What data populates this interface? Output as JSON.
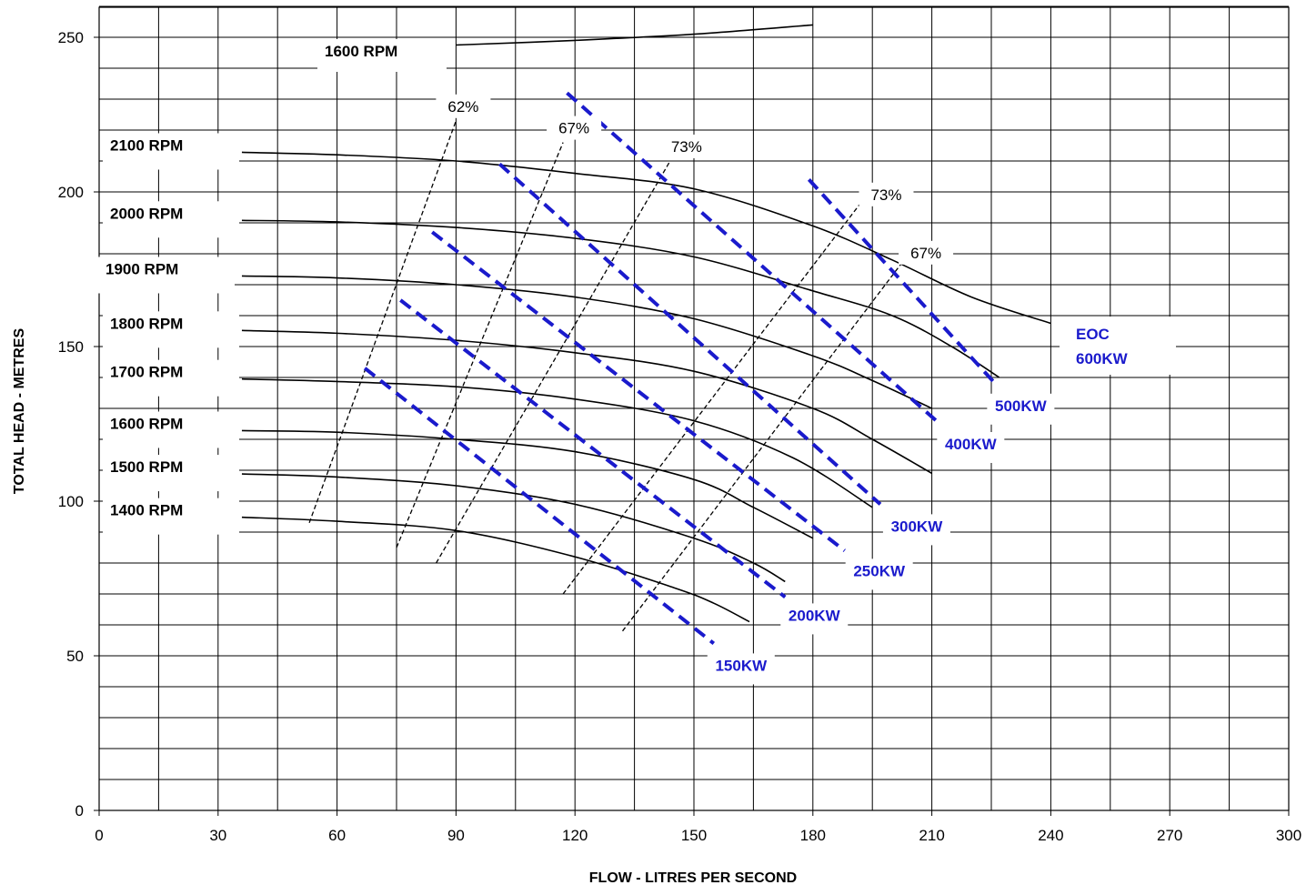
{
  "chart_data": {
    "type": "line",
    "title": "",
    "xlabel": "FLOW  -  LITRES PER SECOND",
    "ylabel": "TOTAL HEAD  -  METRES",
    "xlim": [
      0,
      300
    ],
    "ylim": [
      0,
      260
    ],
    "x_ticks": [
      0,
      30,
      60,
      90,
      120,
      150,
      180,
      210,
      240,
      270,
      300
    ],
    "y_ticks": [
      0,
      50,
      100,
      150,
      200,
      250
    ],
    "grid": true,
    "speed_curves": [
      {
        "name": "1600 RPM",
        "points": [
          [
            90,
            247.5
          ],
          [
            120,
            249
          ],
          [
            150,
            251
          ],
          [
            180,
            254
          ]
        ]
      },
      {
        "name": "2100 RPM",
        "points": [
          [
            36,
            212.8
          ],
          [
            60,
            212
          ],
          [
            90,
            210
          ],
          [
            120,
            206
          ],
          [
            150,
            201
          ],
          [
            180,
            189
          ],
          [
            200,
            178
          ],
          [
            220,
            166
          ],
          [
            240,
            157.5
          ]
        ]
      },
      {
        "name": "2000 RPM",
        "points": [
          [
            36,
            190.8
          ],
          [
            60,
            190.3
          ],
          [
            90,
            188.5
          ],
          [
            120,
            185
          ],
          [
            150,
            179
          ],
          [
            180,
            168
          ],
          [
            200,
            160
          ],
          [
            215,
            150
          ],
          [
            227,
            140
          ]
        ]
      },
      {
        "name": "1900 RPM",
        "points": [
          [
            36,
            172.8
          ],
          [
            60,
            172.2
          ],
          [
            90,
            170
          ],
          [
            120,
            166
          ],
          [
            150,
            159
          ],
          [
            180,
            147
          ],
          [
            195,
            139
          ],
          [
            210,
            130
          ]
        ]
      },
      {
        "name": "1800 RPM",
        "points": [
          [
            36,
            155.2
          ],
          [
            60,
            154.3
          ],
          [
            90,
            152
          ],
          [
            120,
            148
          ],
          [
            150,
            142
          ],
          [
            180,
            130
          ],
          [
            195,
            120
          ],
          [
            210,
            109
          ]
        ]
      },
      {
        "name": "1700 RPM",
        "points": [
          [
            36,
            139.5
          ],
          [
            60,
            138.7
          ],
          [
            90,
            137
          ],
          [
            120,
            133
          ],
          [
            150,
            126
          ],
          [
            175,
            114
          ],
          [
            195,
            98
          ]
        ]
      },
      {
        "name": "1600 RPM",
        "points": [
          [
            36,
            122.8
          ],
          [
            60,
            122.3
          ],
          [
            90,
            120
          ],
          [
            120,
            116
          ],
          [
            150,
            107
          ],
          [
            165,
            98
          ],
          [
            180,
            88
          ]
        ]
      },
      {
        "name": "1500 RPM",
        "points": [
          [
            36,
            108.8
          ],
          [
            60,
            107.8
          ],
          [
            90,
            105
          ],
          [
            120,
            99
          ],
          [
            150,
            88
          ],
          [
            165,
            80
          ],
          [
            173,
            74
          ]
        ]
      },
      {
        "name": "1400 RPM",
        "points": [
          [
            36,
            94.8
          ],
          [
            60,
            93.5
          ],
          [
            90,
            90.5
          ],
          [
            120,
            82
          ],
          [
            145,
            72
          ],
          [
            155,
            67
          ],
          [
            164,
            61
          ]
        ]
      }
    ],
    "efficiency_lines": [
      {
        "label": "62%",
        "points": [
          [
            53,
            93
          ],
          [
            90,
            223
          ]
        ]
      },
      {
        "label": "67%",
        "points": [
          [
            75,
            85
          ],
          [
            117,
            216
          ]
        ]
      },
      {
        "label": "73%",
        "points": [
          [
            85,
            80
          ],
          [
            144,
            210
          ]
        ]
      },
      {
        "label": "73%",
        "points": [
          [
            117,
            70
          ],
          [
            193,
            198
          ]
        ]
      },
      {
        "label": "67%",
        "points": [
          [
            132,
            58
          ],
          [
            203,
            178
          ]
        ]
      }
    ],
    "power_lines": [
      {
        "label": "150KW",
        "points": [
          [
            67,
            143
          ],
          [
            155,
            54
          ]
        ]
      },
      {
        "label": "200KW",
        "points": [
          [
            76,
            165
          ],
          [
            173,
            69
          ]
        ]
      },
      {
        "label": "250KW",
        "points": [
          [
            84,
            187
          ],
          [
            188,
            84
          ]
        ]
      },
      {
        "label": "300KW",
        "points": [
          [
            101,
            209
          ],
          [
            197,
            99
          ]
        ]
      },
      {
        "label": "400KW",
        "points": [
          [
            118,
            232
          ],
          [
            212,
            125
          ]
        ]
      },
      {
        "label": "500KW",
        "points": [
          [
            179,
            204
          ],
          [
            226,
            138
          ]
        ]
      }
    ],
    "annotations": {
      "eoc_line1": "EOC",
      "eoc_line2": "600KW"
    },
    "colors": {
      "speed_curve": "#000000",
      "efficiency_line": "#000000",
      "power_line": "#1a1acc",
      "grid": "#000000"
    }
  }
}
